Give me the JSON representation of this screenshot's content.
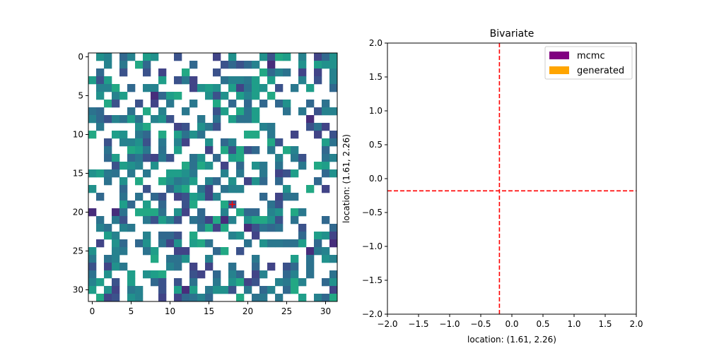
{
  "chart_data": [
    {
      "type": "heatmap",
      "title": "",
      "xlabel": "",
      "ylabel": "",
      "grid_size": [
        32,
        32
      ],
      "xlim": [
        -0.5,
        31.5
      ],
      "ylim": [
        31.5,
        -0.5
      ],
      "xticks": [
        0,
        5,
        10,
        15,
        20,
        25,
        30
      ],
      "yticks": [
        0,
        5,
        10,
        15,
        20,
        25,
        30
      ],
      "colormap": "viridis",
      "masked_fraction": 0.5,
      "marker": {
        "type": "plus",
        "x": 18,
        "y": 19,
        "color": "#ff0000"
      }
    },
    {
      "type": "scatter",
      "title": "Bivariate",
      "xlabel": "location: (1.61, 2.26)",
      "ylabel": "location: (1.61, 2.26)",
      "xlim": [
        -2.0,
        2.0
      ],
      "ylim": [
        -2.0,
        2.0
      ],
      "xticks": [
        -2.0,
        -1.5,
        -1.0,
        -0.5,
        0.0,
        0.5,
        1.0,
        1.5,
        2.0
      ],
      "yticks": [
        -2.0,
        -1.5,
        -1.0,
        -0.5,
        0.0,
        0.5,
        1.0,
        1.5,
        2.0
      ],
      "xtick_labels": [
        "−2.0",
        "−1.5",
        "−1.0",
        "−0.5",
        "0.0",
        "0.5",
        "1.0",
        "1.5",
        "2.0"
      ],
      "ytick_labels": [
        "−2.0",
        "−1.5",
        "−1.0",
        "−0.5",
        "0.0",
        "0.5",
        "1.0",
        "1.5",
        "2.0"
      ],
      "reference_lines": {
        "x": -0.2,
        "y": -0.18,
        "color": "#ff0000",
        "style": "dashed"
      },
      "series": [
        {
          "name": "mcmc",
          "color": "#800080",
          "values": []
        },
        {
          "name": "generated",
          "color": "#ffa500",
          "values": []
        }
      ],
      "legend_position": "upper right",
      "grid": false
    }
  ]
}
